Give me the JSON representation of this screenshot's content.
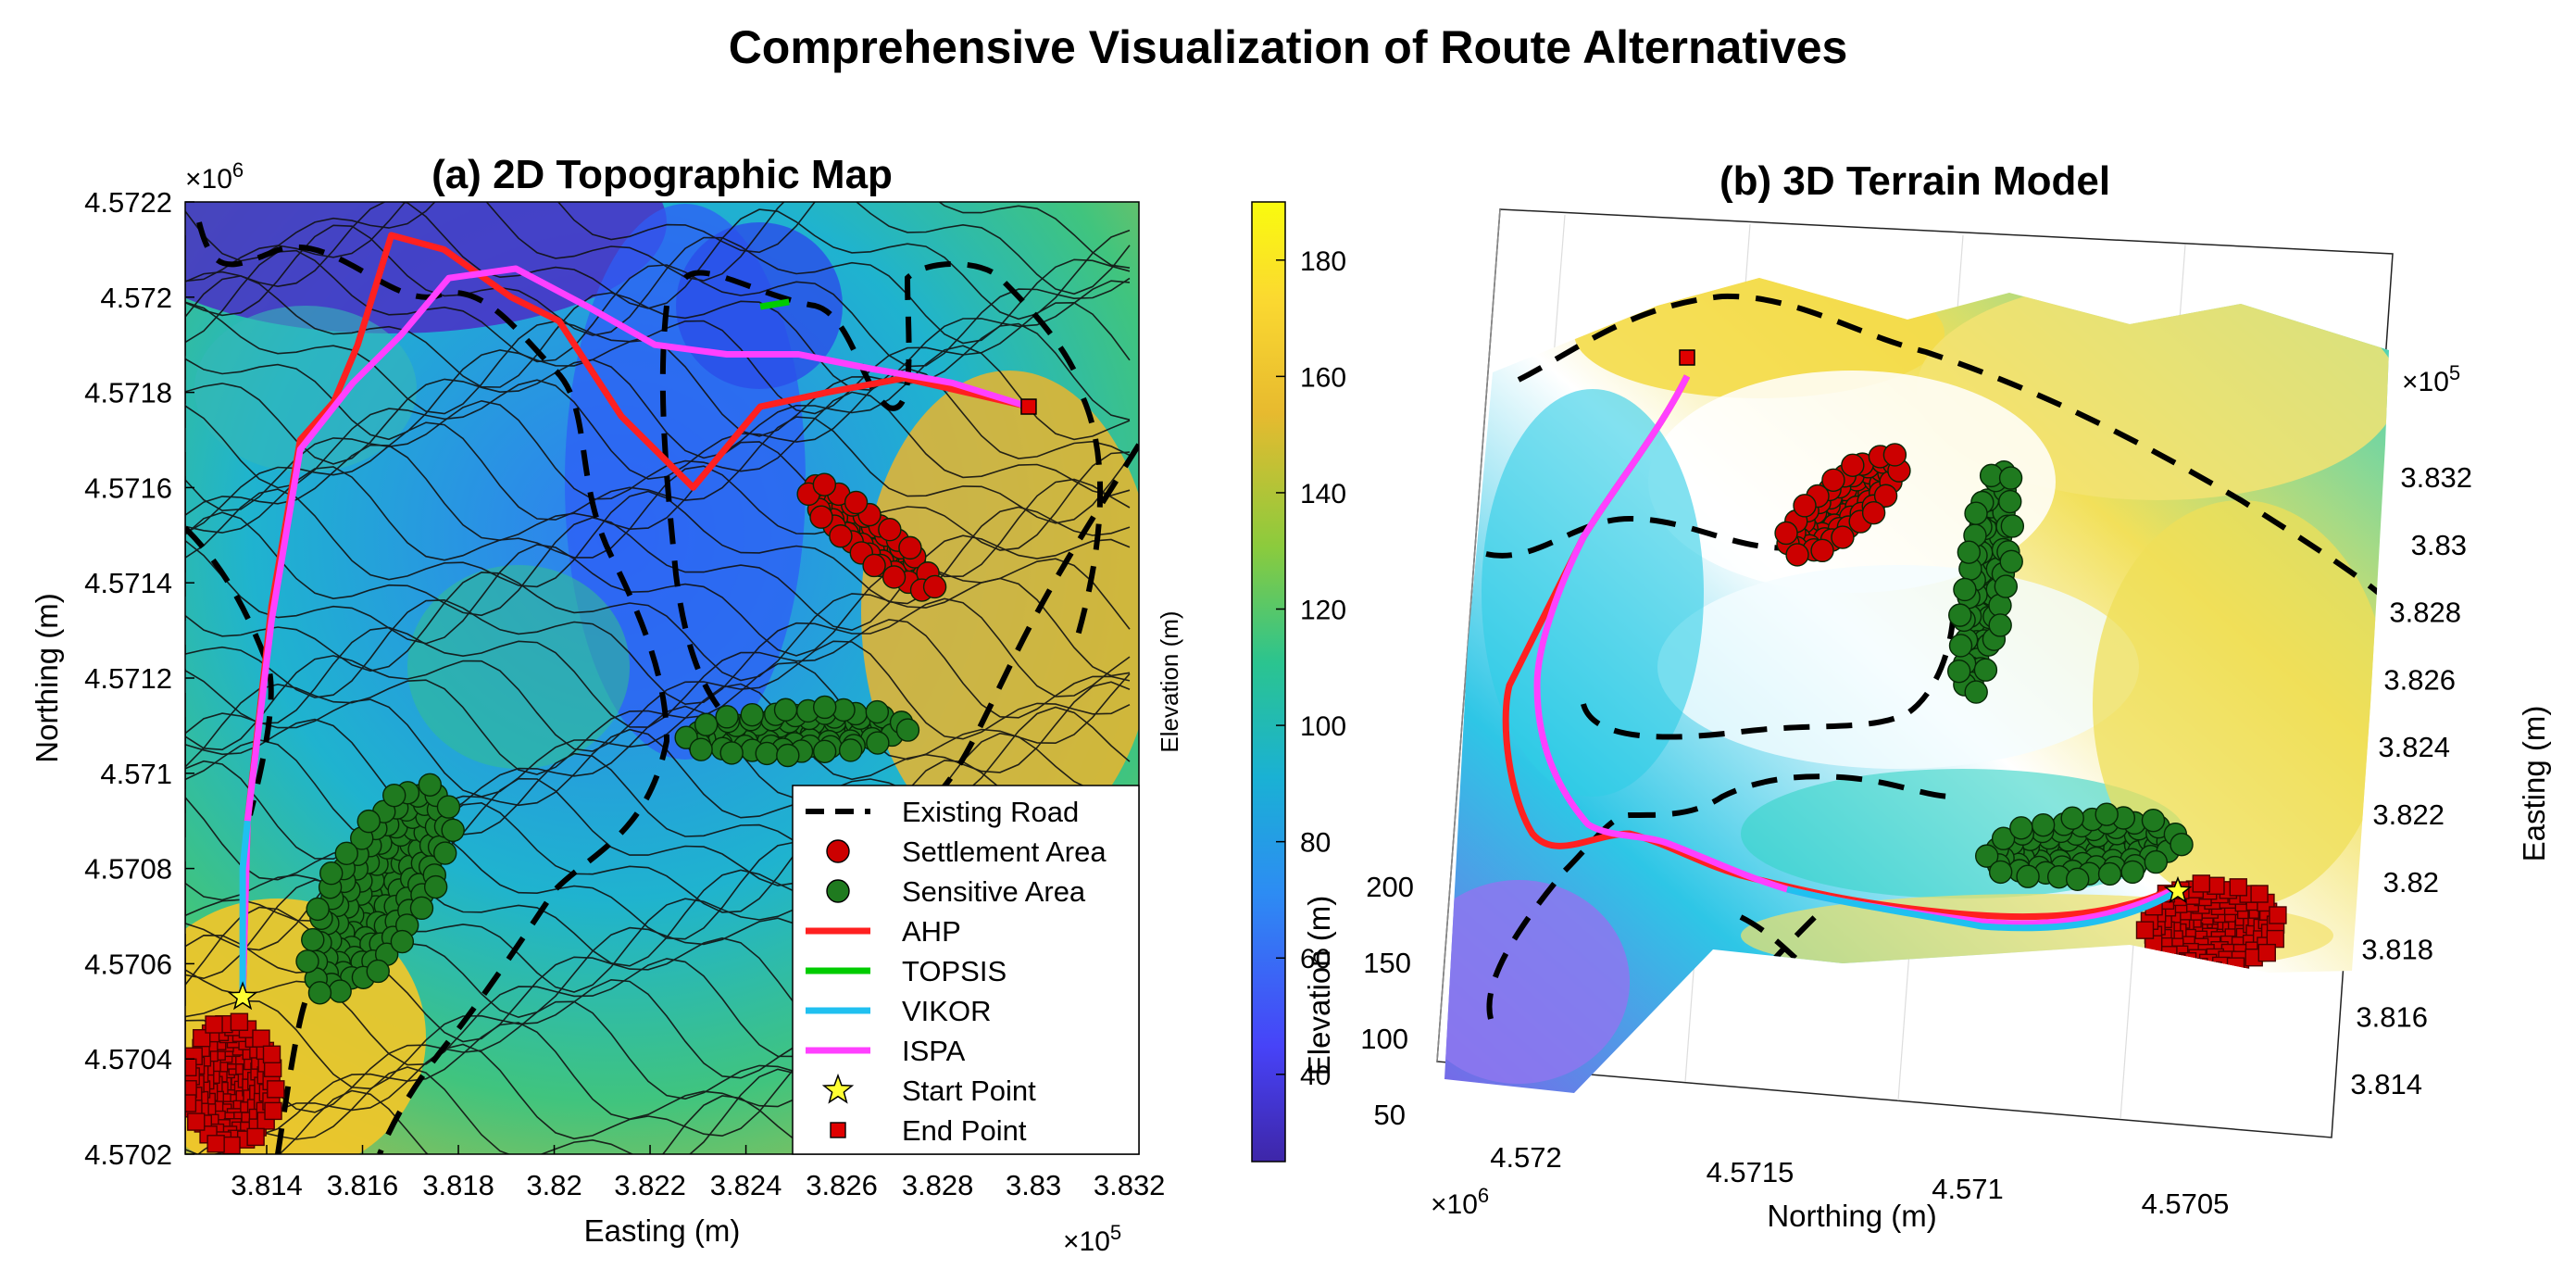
{
  "figure": {
    "title": "Comprehensive Visualization of Route Alternatives"
  },
  "colors": {
    "road": "#000000",
    "settlement": "#cc0000",
    "sensitive": "#1f7a1f",
    "ahp": "#ff2020",
    "topsis": "#00cc00",
    "vikor": "#20c0f0",
    "ispa": "#ff40ff",
    "start": "#ffff33",
    "end": "#e00000",
    "parula": [
      "#3e26a8",
      "#4743f8",
      "#2d8cf3",
      "#1ab1d4",
      "#2bc48f",
      "#8bcb3d",
      "#e7ba2f",
      "#fbd930",
      "#f9fb0e"
    ]
  },
  "chart_data": [
    {
      "type": "contour",
      "title": "(a) 2D Topographic Map",
      "xlabel": "Easting (m)",
      "ylabel": "Northing (m)",
      "x_exponent": "×10^5",
      "y_exponent": "×10^6",
      "xlim": [
        3.8123,
        3.8322
      ],
      "ylim": [
        4.5702,
        4.5722
      ],
      "xticks": [
        "3.814",
        "3.816",
        "3.818",
        "3.82",
        "3.822",
        "3.824",
        "3.826",
        "3.828",
        "3.83",
        "3.832"
      ],
      "yticks": [
        "4.5702",
        "4.5704",
        "4.5706",
        "4.5708",
        "4.571",
        "4.5712",
        "4.5714",
        "4.5716",
        "4.5718",
        "4.572",
        "4.5722"
      ],
      "legend": {
        "placement": "bottom-right",
        "entries": [
          "Existing Road",
          "Settlement Area",
          "Sensitive Area",
          "AHP",
          "TOPSIS",
          "VIKOR",
          "ISPA",
          "Start Point",
          "End Point"
        ]
      },
      "start_point": {
        "x": 3.8135,
        "y": 4.57053
      },
      "end_point": {
        "x": 3.8299,
        "y": 4.57177
      },
      "routes": [
        {
          "name": "AHP",
          "points": [
            [
              3.8135,
              4.57053
            ],
            [
              3.8136,
              4.5709
            ],
            [
              3.8141,
              4.57135
            ],
            [
              3.8147,
              4.5717
            ],
            [
              3.8154,
              4.57178
            ],
            [
              3.8159,
              4.5719
            ],
            [
              3.8166,
              4.57213
            ],
            [
              3.8177,
              4.5721
            ],
            [
              3.8191,
              4.572
            ],
            [
              3.8201,
              4.57195
            ],
            [
              3.8214,
              4.57175
            ],
            [
              3.8229,
              4.5716
            ],
            [
              3.8243,
              4.57177
            ],
            [
              3.8257,
              4.5718
            ],
            [
              3.8273,
              4.57183
            ],
            [
              3.8299,
              4.57177
            ]
          ]
        },
        {
          "name": "ISPA",
          "points": [
            [
              3.8135,
              4.57053
            ],
            [
              3.8136,
              4.5709
            ],
            [
              3.8141,
              4.57132
            ],
            [
              3.8147,
              4.57168
            ],
            [
              3.8158,
              4.57182
            ],
            [
              3.8168,
              4.57192
            ],
            [
              3.8178,
              4.57204
            ],
            [
              3.8192,
              4.57206
            ],
            [
              3.8207,
              4.57198
            ],
            [
              3.8221,
              4.5719
            ],
            [
              3.8236,
              4.57188
            ],
            [
              3.8251,
              4.57188
            ],
            [
              3.8266,
              4.57185
            ],
            [
              3.8283,
              4.57182
            ],
            [
              3.8299,
              4.57177
            ]
          ]
        },
        {
          "name": "VIKOR",
          "points": [
            [
              3.8135,
              4.57053
            ],
            [
              3.8135,
              4.5708
            ],
            [
              3.8136,
              4.5709
            ]
          ]
        },
        {
          "name": "TOPSIS",
          "points": [
            [
              3.8243,
              4.57198
            ],
            [
              3.8249,
              4.57199
            ]
          ]
        }
      ],
      "settlement_areas": [
        {
          "center": [
            3.8135,
            4.57035
          ],
          "extent": "polygon"
        },
        {
          "center": [
            3.826,
            4.5715
          ],
          "extent": "polygon"
        }
      ],
      "sensitive_areas": [
        {
          "center": [
            3.8165,
            4.57072
          ],
          "extent": "polygon"
        },
        {
          "center": [
            3.825,
            4.5711
          ],
          "extent": "polygon"
        }
      ]
    },
    {
      "type": "colorbar",
      "label": "Elevation (m)",
      "ticks": [
        "40",
        "60",
        "80",
        "100",
        "120",
        "140",
        "160",
        "180"
      ],
      "range": [
        25,
        190
      ]
    },
    {
      "type": "surface",
      "title": "(b) 3D Terrain Model",
      "xlabel": "Northing (m)",
      "ylabel": "Easting (m)",
      "zlabel": "Elevation (m)",
      "x_exponent": "×10^6",
      "y_exponent": "×10^5",
      "xticks": [
        "4.572",
        "4.5715",
        "4.571",
        "4.5705"
      ],
      "yticks": [
        "3.832",
        "3.83",
        "3.828",
        "3.826",
        "3.824",
        "3.822",
        "3.82",
        "3.818",
        "3.816",
        "3.814"
      ],
      "zticks": [
        "50",
        "100",
        "150",
        "200"
      ]
    }
  ]
}
